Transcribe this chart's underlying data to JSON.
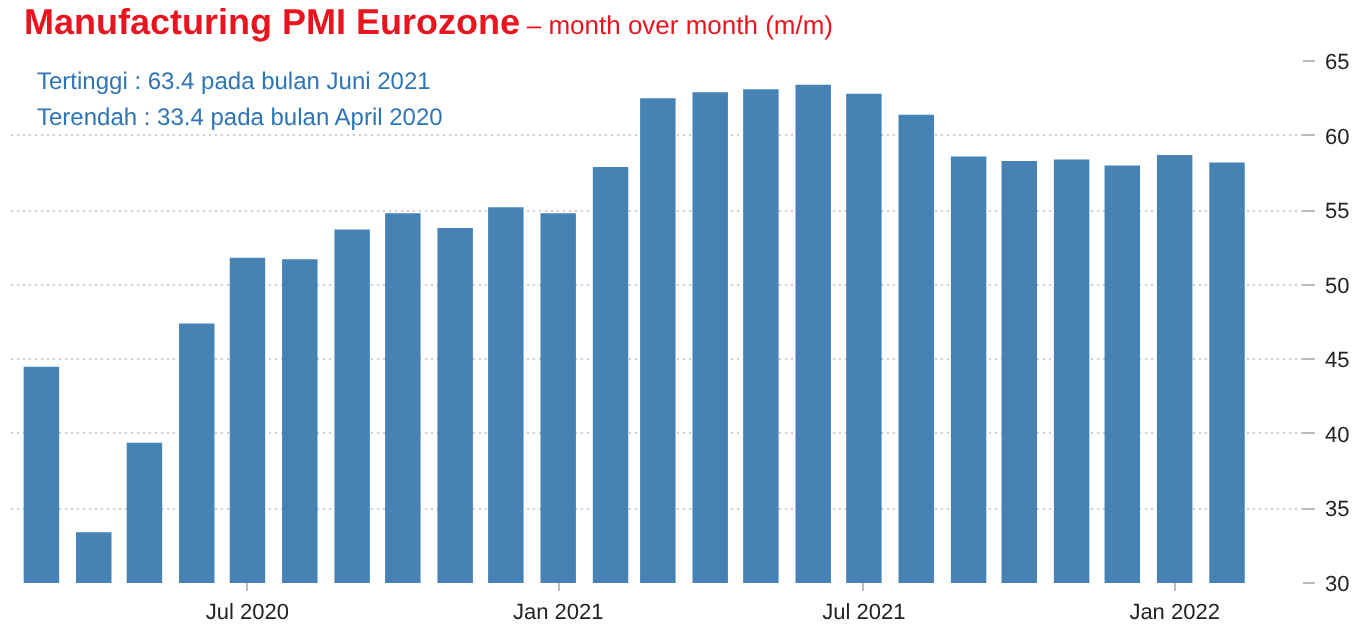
{
  "chart_data": {
    "type": "bar",
    "title": "Manufacturing PMI Eurozone",
    "subtitle": "– month over month (m/m)",
    "annotations": [
      "Tertinggi  : 63.4 pada bulan Juni 2021",
      "Terendah : 33.4 pada bulan April 2020"
    ],
    "x": [
      "2020-03",
      "2020-04",
      "2020-05",
      "2020-06",
      "2020-07",
      "2020-08",
      "2020-09",
      "2020-10",
      "2020-11",
      "2020-12",
      "2021-01",
      "2021-02",
      "2021-03",
      "2021-04",
      "2021-05",
      "2021-06",
      "2021-07",
      "2021-08",
      "2021-09",
      "2021-10",
      "2021-11",
      "2021-12",
      "2022-01",
      "2022-02"
    ],
    "values": [
      44.5,
      33.4,
      39.4,
      47.4,
      51.8,
      51.7,
      53.7,
      54.8,
      53.8,
      55.2,
      54.8,
      57.9,
      62.5,
      62.9,
      63.1,
      63.4,
      62.8,
      61.4,
      58.6,
      58.3,
      58.4,
      58.0,
      58.7,
      58.2
    ],
    "color": "#4682b4",
    "xlim": [
      "2020-02-12",
      "2022-03-18"
    ],
    "xticks": [
      {
        "value": "2020-07",
        "label": "Jul 2020"
      },
      {
        "value": "2021-01",
        "label": "Jan 2021"
      },
      {
        "value": "2021-07",
        "label": "Jul 2021"
      },
      {
        "value": "2022-01",
        "label": "Jan 2022"
      }
    ],
    "ylim": [
      30,
      65
    ],
    "yticks": [
      30,
      35,
      40,
      45,
      50,
      55,
      60,
      65
    ],
    "grid": true
  }
}
